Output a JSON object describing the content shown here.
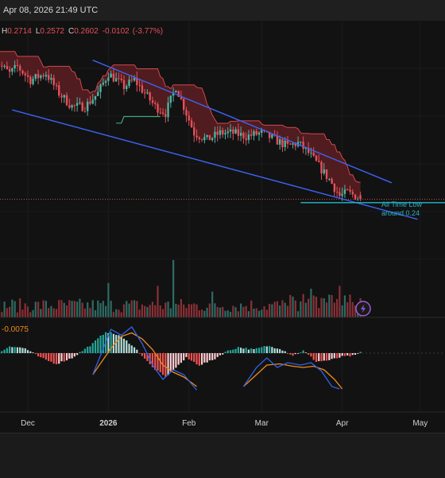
{
  "header": {
    "timestamp": "Apr 08, 2026 21:49 UTC"
  },
  "colors": {
    "background": "#121212",
    "up": "#4fb3a2",
    "down": "#e5505a",
    "cloud_fill": "#5c1f22",
    "cloud_line": "#d1474f",
    "trendline": "#3c63f2",
    "support": "#22b7c9",
    "annotation": "#2ab3c2",
    "macd_line": "#2f63e8",
    "signal_line": "#ef8a1a",
    "price_line": "#c84a50",
    "icon": "#9a5bd8"
  },
  "legend": {
    "h_label": "H",
    "h_value": "0.2714",
    "l_label": "L",
    "l_value": "0.2572",
    "c_label": "C",
    "c_value": "0.2602",
    "change": "-0.0102",
    "change_pct": "(-3.77%)"
  },
  "annotation": {
    "line1": "All Time Low",
    "line2": "around 0.24"
  },
  "macd_label": "-0.0075",
  "x_axis": [
    "Dec",
    "2026",
    "Feb",
    "Mar",
    "Apr",
    "May"
  ],
  "chart_data": {
    "type": "candlestick",
    "timeframe": "daily",
    "price_range": [
      0.22,
      0.52
    ],
    "last": {
      "high": 0.2714,
      "low": 0.2572,
      "close": 0.2602,
      "change": -0.0102,
      "change_pct": -3.77
    },
    "trendlines": [
      {
        "name": "upper",
        "from_date": "2025-12-26",
        "from_price": 0.47,
        "to_date": "2026-04-20",
        "to_price": 0.285
      },
      {
        "name": "lower",
        "from_date": "2025-11-25",
        "from_price": 0.395,
        "to_date": "2026-04-30",
        "to_price": 0.23
      }
    ],
    "support": {
      "price": 0.255,
      "from_date": "2026-03-16"
    },
    "price_path": [
      {
        "date": "2025-11-18",
        "price": 0.47
      },
      {
        "date": "2025-11-24",
        "price": 0.45
      },
      {
        "date": "2025-11-27",
        "price": 0.46
      },
      {
        "date": "2025-12-02",
        "price": 0.44
      },
      {
        "date": "2025-12-08",
        "price": 0.45
      },
      {
        "date": "2025-12-13",
        "price": 0.42
      },
      {
        "date": "2025-12-18",
        "price": 0.4
      },
      {
        "date": "2025-12-23",
        "price": 0.4
      },
      {
        "date": "2025-12-28",
        "price": 0.42
      },
      {
        "date": "2026-01-01",
        "price": 0.45
      },
      {
        "date": "2026-01-04",
        "price": 0.44
      },
      {
        "date": "2026-01-07",
        "price": 0.43
      },
      {
        "date": "2026-01-11",
        "price": 0.44
      },
      {
        "date": "2026-01-15",
        "price": 0.42
      },
      {
        "date": "2026-01-19",
        "price": 0.4
      },
      {
        "date": "2026-01-23",
        "price": 0.39
      },
      {
        "date": "2026-01-27",
        "price": 0.43
      },
      {
        "date": "2026-01-30",
        "price": 0.4
      },
      {
        "date": "2026-02-03",
        "price": 0.36
      },
      {
        "date": "2026-02-08",
        "price": 0.35
      },
      {
        "date": "2026-02-13",
        "price": 0.36
      },
      {
        "date": "2026-02-18",
        "price": 0.36
      },
      {
        "date": "2026-02-23",
        "price": 0.355
      },
      {
        "date": "2026-03-01",
        "price": 0.36
      },
      {
        "date": "2026-03-06",
        "price": 0.35
      },
      {
        "date": "2026-03-11",
        "price": 0.34
      },
      {
        "date": "2026-03-15",
        "price": 0.345
      },
      {
        "date": "2026-03-19",
        "price": 0.33
      },
      {
        "date": "2026-03-23",
        "price": 0.31
      },
      {
        "date": "2026-03-27",
        "price": 0.29
      },
      {
        "date": "2026-03-31",
        "price": 0.265
      },
      {
        "date": "2026-04-03",
        "price": 0.27
      },
      {
        "date": "2026-04-06",
        "price": 0.265
      },
      {
        "date": "2026-04-08",
        "price": 0.26
      }
    ],
    "macd_histogram": [
      {
        "date": "2025-11-18",
        "value": -0.003
      },
      {
        "date": "2025-11-24",
        "value": 0.006
      },
      {
        "date": "2025-11-30",
        "value": 0.004
      },
      {
        "date": "2025-12-06",
        "value": -0.004
      },
      {
        "date": "2025-12-12",
        "value": -0.009
      },
      {
        "date": "2025-12-18",
        "value": -0.004
      },
      {
        "date": "2025-12-22",
        "value": 0.002
      },
      {
        "date": "2025-12-26",
        "value": 0.008
      },
      {
        "date": "2025-12-31",
        "value": 0.018
      },
      {
        "date": "2026-01-05",
        "value": 0.015
      },
      {
        "date": "2026-01-10",
        "value": 0.007
      },
      {
        "date": "2026-01-14",
        "value": -0.002
      },
      {
        "date": "2026-01-18",
        "value": -0.012
      },
      {
        "date": "2026-01-23",
        "value": -0.02
      },
      {
        "date": "2026-01-27",
        "value": -0.012
      },
      {
        "date": "2026-01-31",
        "value": -0.004
      },
      {
        "date": "2026-02-05",
        "value": -0.01
      },
      {
        "date": "2026-02-10",
        "value": -0.006
      },
      {
        "date": "2026-02-15",
        "value": 0.001
      },
      {
        "date": "2026-02-20",
        "value": 0.005
      },
      {
        "date": "2026-02-26",
        "value": 0.003
      },
      {
        "date": "2026-03-03",
        "value": 0.006
      },
      {
        "date": "2026-03-08",
        "value": 0.004
      },
      {
        "date": "2026-03-13",
        "value": -0.002
      },
      {
        "date": "2026-03-17",
        "value": 0.002
      },
      {
        "date": "2026-03-22",
        "value": -0.007
      },
      {
        "date": "2026-03-27",
        "value": -0.006
      },
      {
        "date": "2026-04-01",
        "value": -0.003
      },
      {
        "date": "2026-04-06",
        "value": -0.002
      },
      {
        "date": "2026-04-08",
        "value": 0.001
      }
    ],
    "macd_line": [
      {
        "date": "2025-12-26",
        "value": -0.018
      },
      {
        "date": "2026-01-02",
        "value": 0.02
      },
      {
        "date": "2026-01-06",
        "value": 0.015
      },
      {
        "date": "2026-01-10",
        "value": 0.022
      },
      {
        "date": "2026-01-14",
        "value": 0.008
      },
      {
        "date": "2026-01-18",
        "value": -0.01
      },
      {
        "date": "2026-01-22",
        "value": -0.022
      },
      {
        "date": "2026-01-26",
        "value": -0.014
      },
      {
        "date": "2026-01-30",
        "value": -0.018
      },
      {
        "date": "2026-02-04",
        "value": -0.031
      }
    ],
    "signal_line": [
      {
        "date": "2025-12-26",
        "value": -0.018
      },
      {
        "date": "2026-01-02",
        "value": 0.004
      },
      {
        "date": "2026-01-06",
        "value": 0.014
      },
      {
        "date": "2026-01-10",
        "value": 0.017
      },
      {
        "date": "2026-01-14",
        "value": 0.012
      },
      {
        "date": "2026-01-18",
        "value": 0.003
      },
      {
        "date": "2026-01-22",
        "value": -0.01
      },
      {
        "date": "2026-01-26",
        "value": -0.016
      },
      {
        "date": "2026-01-30",
        "value": -0.02
      },
      {
        "date": "2026-02-04",
        "value": -0.028
      }
    ],
    "macd_line_2": [
      {
        "date": "2026-02-22",
        "value": -0.028
      },
      {
        "date": "2026-02-27",
        "value": -0.012
      },
      {
        "date": "2026-03-03",
        "value": -0.004
      },
      {
        "date": "2026-03-07",
        "value": -0.012
      },
      {
        "date": "2026-03-11",
        "value": -0.008
      },
      {
        "date": "2026-03-16",
        "value": -0.01
      },
      {
        "date": "2026-03-20",
        "value": -0.008
      },
      {
        "date": "2026-03-24",
        "value": -0.015
      },
      {
        "date": "2026-03-28",
        "value": -0.028
      },
      {
        "date": "2026-03-31",
        "value": -0.03
      }
    ],
    "signal_line_2": [
      {
        "date": "2026-02-22",
        "value": -0.028
      },
      {
        "date": "2026-02-27",
        "value": -0.018
      },
      {
        "date": "2026-03-03",
        "value": -0.01
      },
      {
        "date": "2026-03-08",
        "value": -0.009
      },
      {
        "date": "2026-03-13",
        "value": -0.011
      },
      {
        "date": "2026-03-17",
        "value": -0.012
      },
      {
        "date": "2026-03-21",
        "value": -0.011
      },
      {
        "date": "2026-03-25",
        "value": -0.014
      },
      {
        "date": "2026-03-29",
        "value": -0.022
      },
      {
        "date": "2026-04-01",
        "value": -0.03
      }
    ],
    "volume_spikes": [
      {
        "date": "2026-01-01",
        "value": 60
      },
      {
        "date": "2026-01-26",
        "value": 100
      },
      {
        "date": "2026-01-20",
        "value": 55
      },
      {
        "date": "2026-02-10",
        "value": 45
      },
      {
        "date": "2026-03-20",
        "value": 50
      },
      {
        "date": "2026-03-31",
        "value": 55
      }
    ]
  }
}
